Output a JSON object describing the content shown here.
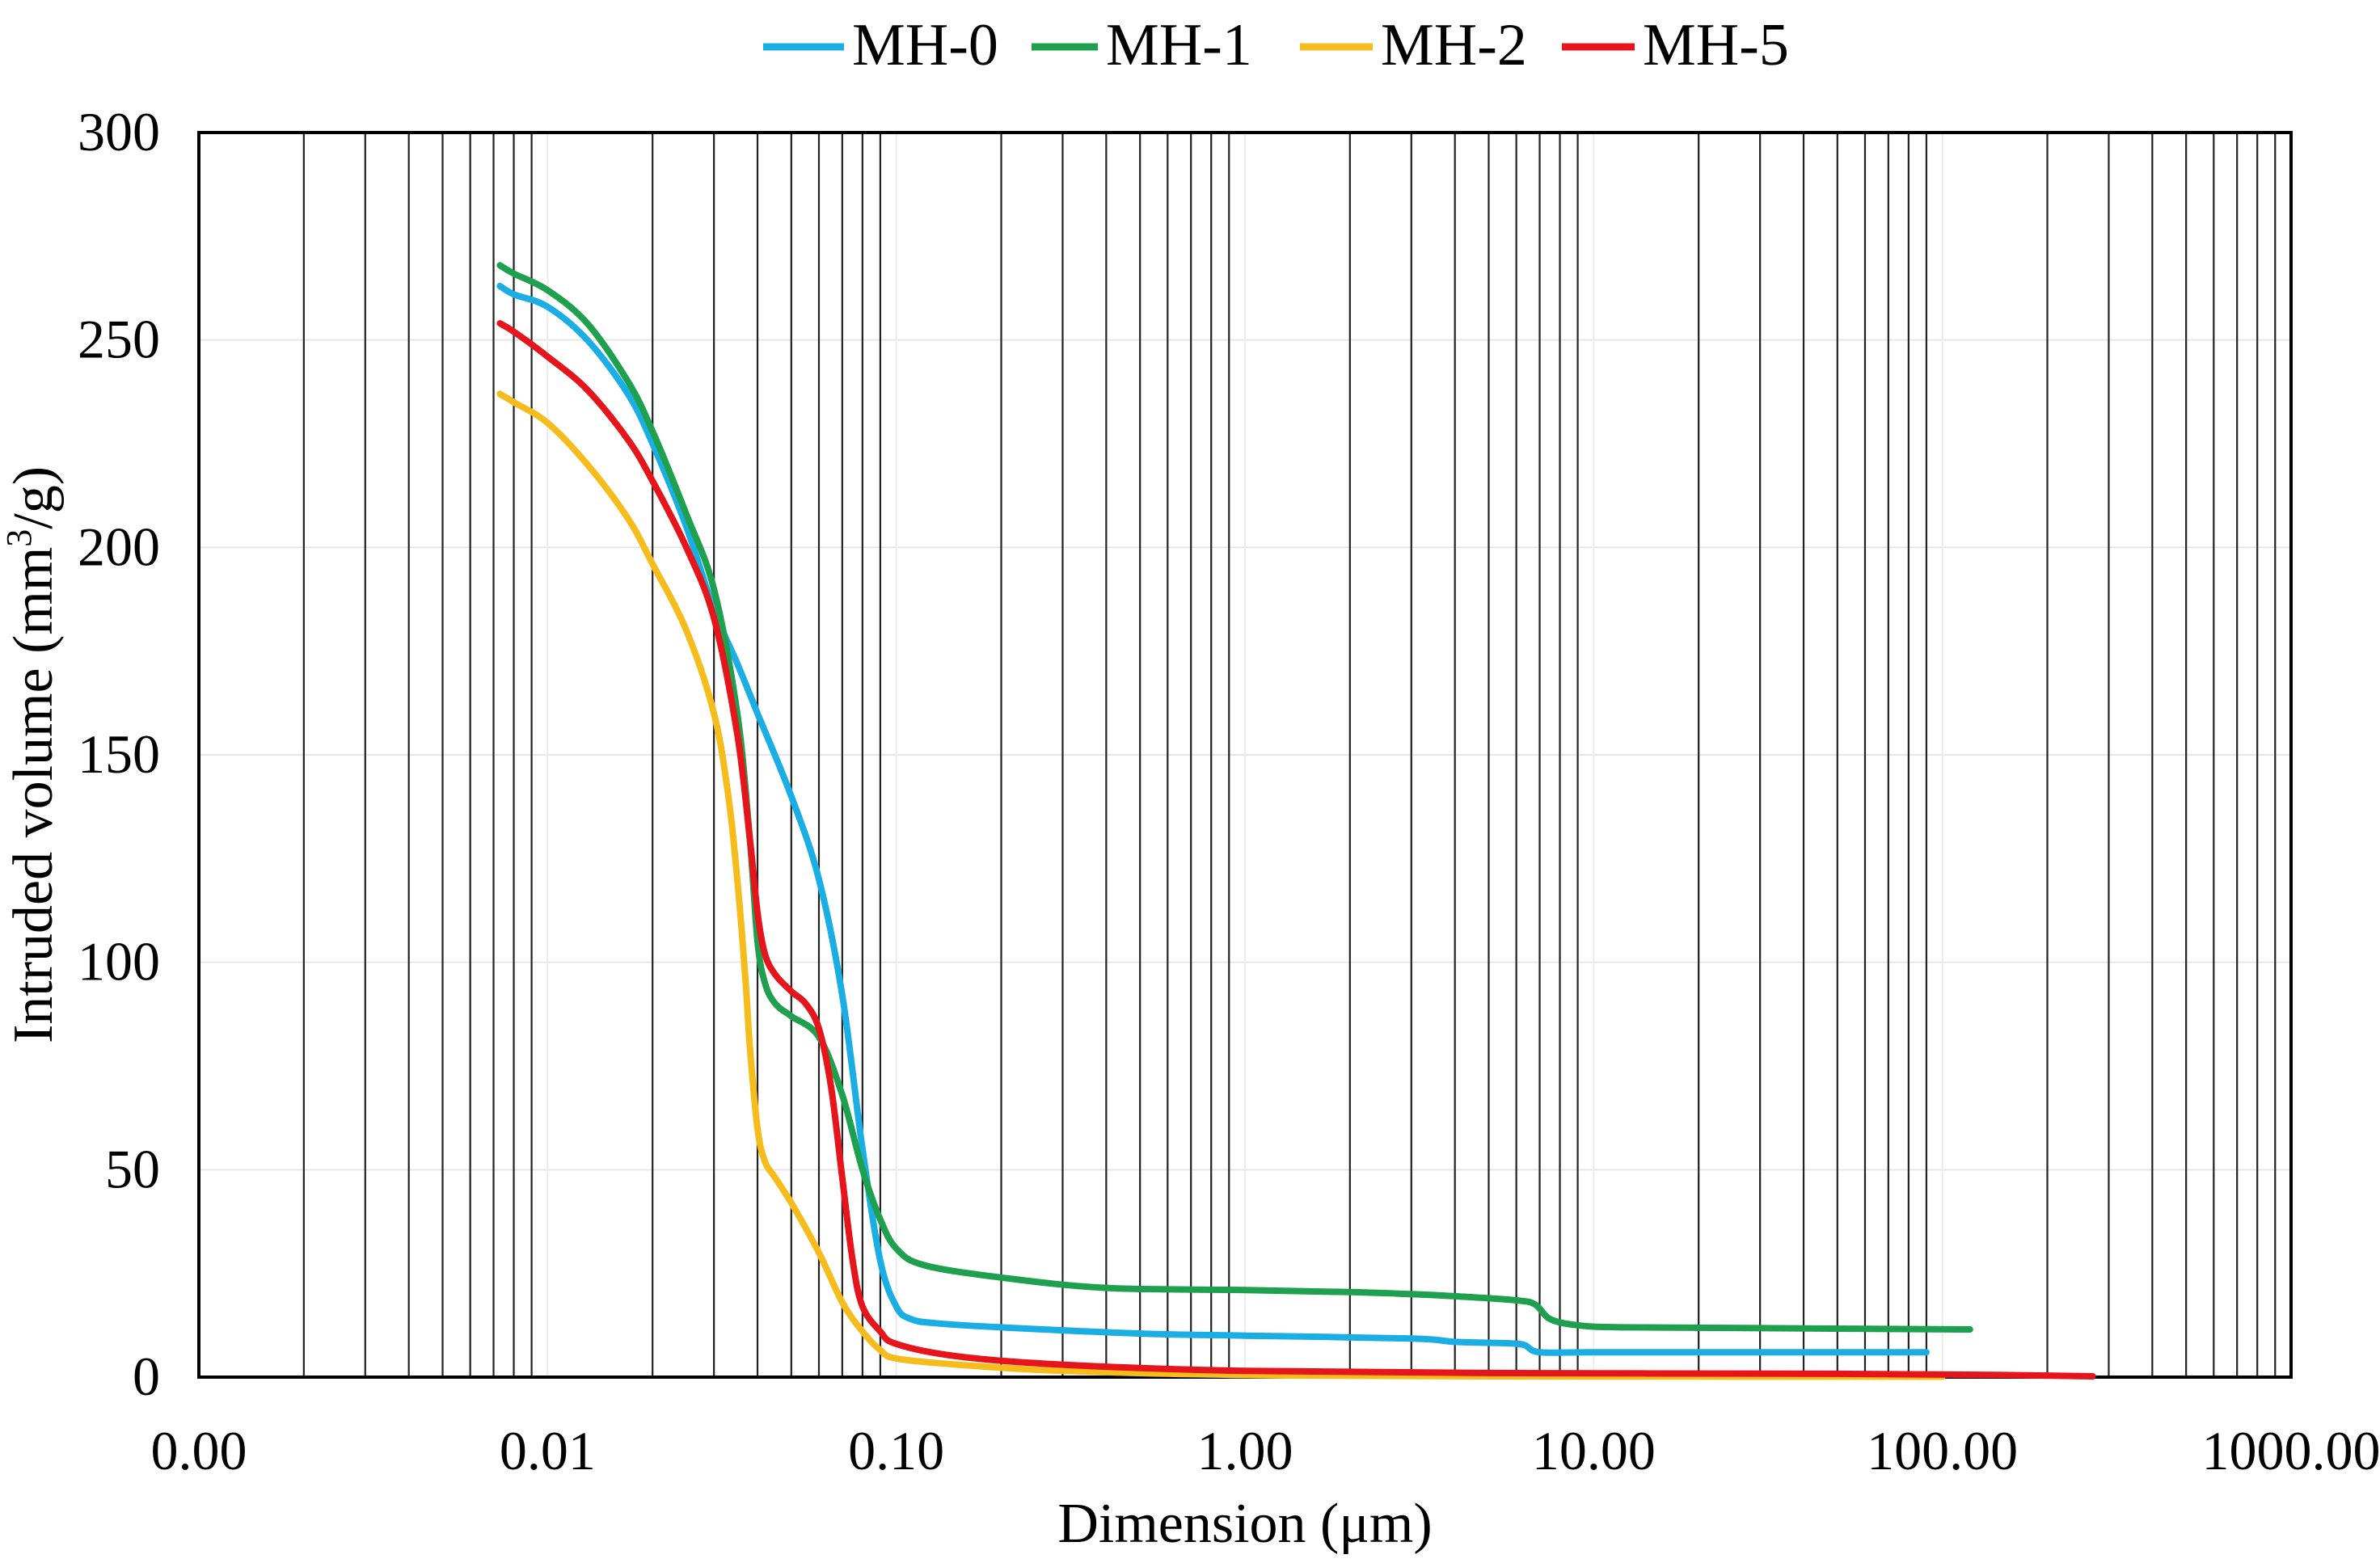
{
  "chart_data": {
    "type": "line",
    "title": "",
    "xlabel": "Dimension (μm)",
    "ylabel_main": "Intruded volume (mm",
    "ylabel_sup": "3",
    "ylabel_tail": "/g)",
    "xscale": "log",
    "xlim": [
      0.001,
      1000
    ],
    "ylim": [
      0,
      300
    ],
    "x_tick_labels": [
      "0.00",
      "0.01",
      "0.10",
      "1.00",
      "10.00",
      "100.00",
      "1000.00"
    ],
    "y_tick_labels": [
      "0",
      "50",
      "100",
      "150",
      "200",
      "250",
      "300"
    ],
    "y_ticks": [
      0,
      50,
      100,
      150,
      200,
      250,
      300
    ],
    "grid": true,
    "legend_position": "top",
    "series": [
      {
        "name": "MH-0",
        "color": "#1aaee5",
        "x": [
          0.0073,
          0.008,
          0.01,
          0.013,
          0.017,
          0.02,
          0.025,
          0.03,
          0.035,
          0.04,
          0.05,
          0.06,
          0.07,
          0.08,
          0.09,
          0.1,
          0.11,
          0.13,
          0.2,
          0.5,
          1,
          3,
          4,
          5.5,
          6.3,
          7,
          10,
          30,
          90
        ],
        "y": [
          263,
          261,
          258,
          250,
          237,
          225,
          205,
          185,
          172,
          160,
          140,
          120,
          92,
          55,
          28,
          17,
          14,
          13,
          12,
          10.5,
          10,
          9.3,
          8.5,
          8.2,
          7.8,
          6,
          6,
          6,
          6
        ]
      },
      {
        "name": "MH-1",
        "color": "#1ea04e",
        "x": [
          0.0073,
          0.008,
          0.01,
          0.013,
          0.017,
          0.02,
          0.025,
          0.03,
          0.035,
          0.038,
          0.04,
          0.042,
          0.045,
          0.05,
          0.06,
          0.07,
          0.08,
          0.09,
          0.1,
          0.12,
          0.2,
          0.4,
          1,
          2,
          3,
          4,
          6,
          6.8,
          7.5,
          9,
          12,
          30,
          120
        ],
        "y": [
          268,
          266,
          262,
          254,
          240,
          228,
          208,
          190,
          160,
          130,
          105,
          95,
          90,
          87,
          82,
          68,
          50,
          38,
          31,
          27,
          24,
          21.5,
          21,
          20.5,
          20,
          19.5,
          18.5,
          17.5,
          14,
          12.5,
          12,
          11.8,
          11.5
        ]
      },
      {
        "name": "MH-2",
        "color": "#f5bc1b",
        "x": [
          0.0073,
          0.008,
          0.01,
          0.013,
          0.017,
          0.02,
          0.025,
          0.03,
          0.033,
          0.035,
          0.037,
          0.038,
          0.04,
          0.042,
          0.045,
          0.05,
          0.06,
          0.07,
          0.08,
          0.09,
          0.1,
          0.15,
          0.3,
          1,
          5,
          100
        ],
        "y": [
          237,
          235,
          230,
          220,
          207,
          196,
          180,
          160,
          140,
          120,
          95,
          80,
          60,
          52,
          48,
          42,
          30,
          18,
          11,
          6.5,
          4.5,
          3,
          1.5,
          0.5,
          0.2,
          0.1
        ]
      },
      {
        "name": "MH-5",
        "color": "#e5151b",
        "x": [
          0.0073,
          0.008,
          0.01,
          0.013,
          0.017,
          0.02,
          0.025,
          0.03,
          0.035,
          0.038,
          0.04,
          0.042,
          0.045,
          0.05,
          0.055,
          0.06,
          0.065,
          0.07,
          0.075,
          0.08,
          0.09,
          0.1,
          0.15,
          0.3,
          1,
          5,
          50,
          150,
          270
        ],
        "y": [
          254,
          252,
          246,
          238,
          226,
          216,
          200,
          183,
          155,
          130,
          112,
          102,
          97,
          93,
          90,
          84,
          70,
          48,
          28,
          17,
          11,
          8,
          5,
          3,
          1.5,
          1,
          0.8,
          0.5,
          0.2
        ]
      }
    ]
  }
}
